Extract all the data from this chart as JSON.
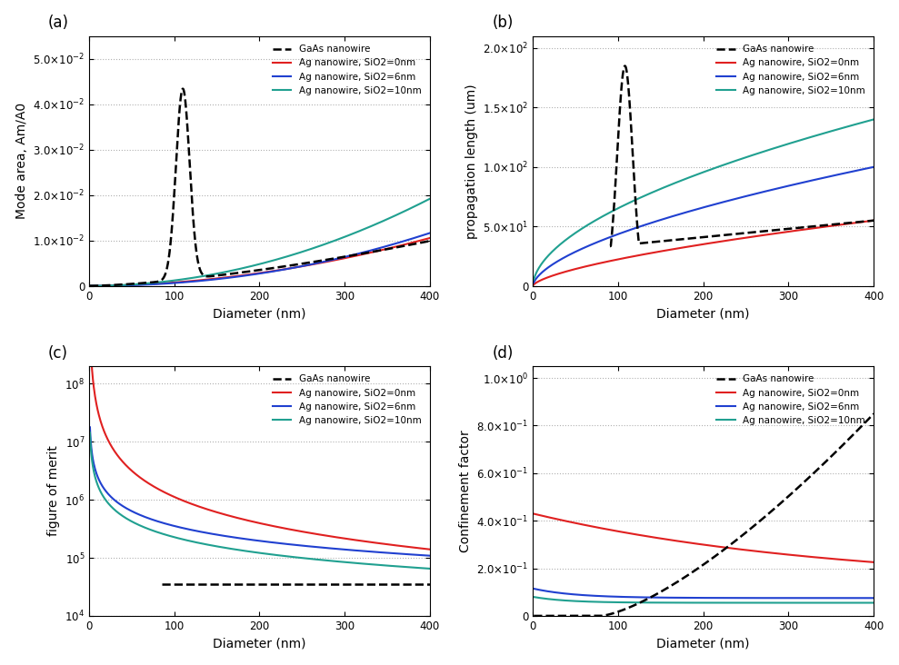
{
  "x_range": [
    0,
    400
  ],
  "x_ticks": [
    0,
    100,
    200,
    300,
    400
  ],
  "legend_labels": [
    "GaAs nanowire",
    "Ag nanowire, SiO2=0nm",
    "Ag nanowire, SiO2=6nm",
    "Ag nanowire, SiO2=10nm"
  ],
  "colors": [
    "black",
    "#e02020",
    "#2040d0",
    "#20a090"
  ],
  "linestyles": [
    "--",
    "-",
    "-",
    "-"
  ],
  "panel_labels": [
    "(a)",
    "(b)",
    "(c)",
    "(d)"
  ],
  "xlabels": [
    "Diameter (nm)",
    "Diameter (nm)",
    "Diameter (nm)",
    "Diameter (nm)"
  ],
  "ylabels": [
    "Mode area, Am/A0",
    "propagation length (um)",
    "figure of merit",
    "Confinement factor"
  ],
  "background_color": "#ffffff",
  "grid_color": "#b0b0b0"
}
